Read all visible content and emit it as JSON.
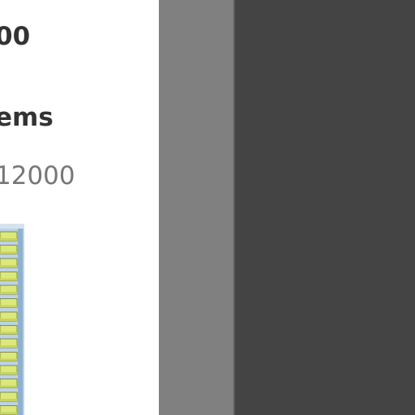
{
  "product": {
    "price_fragment": "00",
    "title_fragment": "ems",
    "item_number_fragment": "12000"
  },
  "image": {
    "name": "shelving-unit-with-yellow-bins"
  },
  "colors": {
    "card_background": "#ffffff",
    "scrollbar_track": "#808080",
    "dark_pane": "#444444",
    "bin_yellow": "#dde87a",
    "frame_blue": "#a9c4de"
  }
}
